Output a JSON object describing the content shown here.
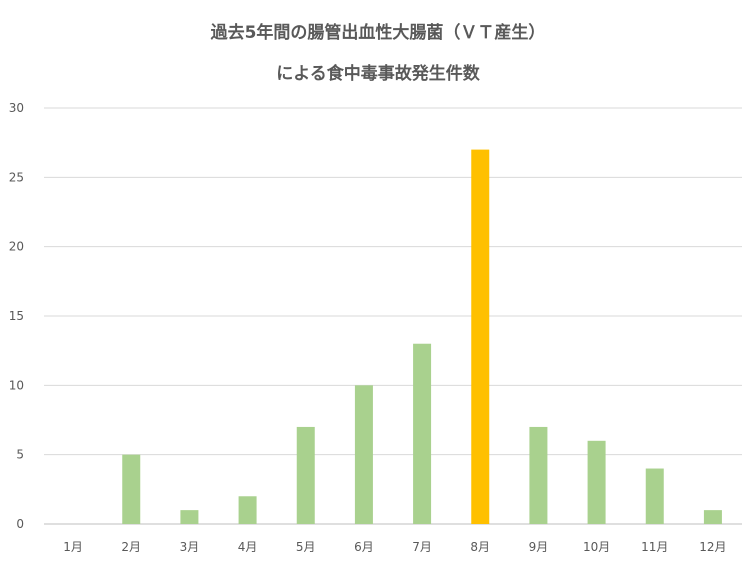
{
  "chart_data": {
    "type": "bar",
    "title_lines": [
      "過去5年間の腸管出血性大腸菌（ＶＴ産生）",
      "による食中毒事故発生件数"
    ],
    "categories": [
      "1月",
      "2月",
      "3月",
      "4月",
      "5月",
      "6月",
      "7月",
      "8月",
      "9月",
      "10月",
      "11月",
      "12月"
    ],
    "values": [
      0,
      5,
      1,
      2,
      7,
      10,
      13,
      27,
      7,
      6,
      4,
      1
    ],
    "ylim": [
      0,
      30
    ],
    "yticks": [
      0,
      5,
      10,
      15,
      20,
      25,
      30
    ],
    "grid": true,
    "legend": "none",
    "bar_color": "#a9d18e",
    "highlight_color": "#ffc000",
    "highlight_category": "8月"
  }
}
